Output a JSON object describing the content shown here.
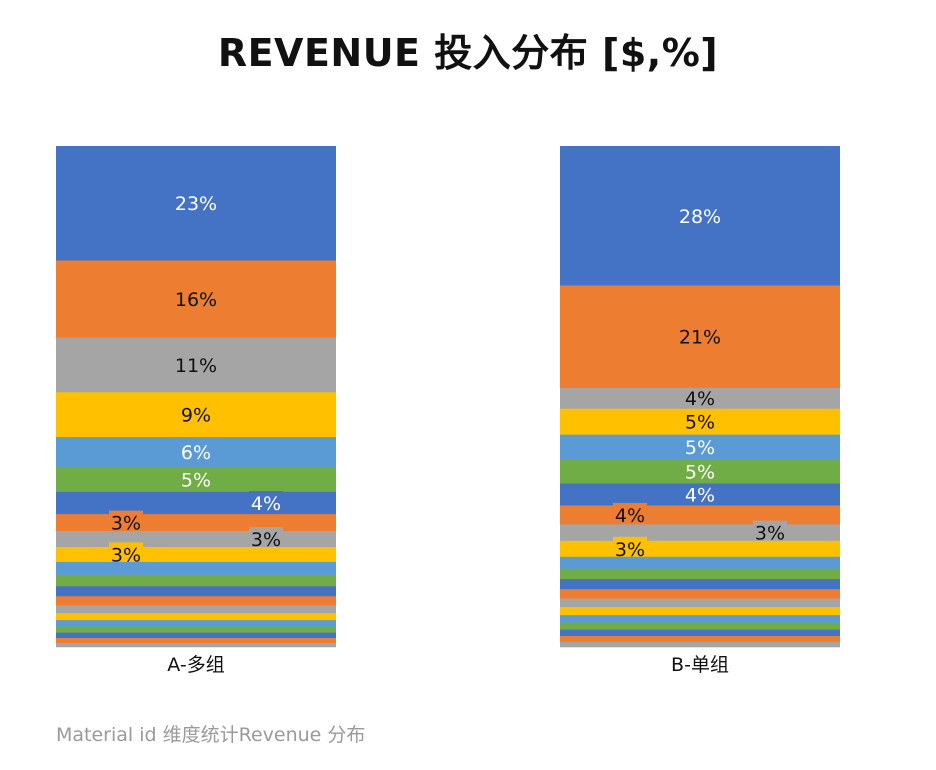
{
  "title": "REVENUE 投入分布 [$,%]",
  "footer": "Material id 维度统计Revenue 分布",
  "chart_data": {
    "type": "bar",
    "stacked": "percent",
    "categories": [
      "A-多组",
      "B-单组"
    ],
    "palette": [
      "#4472C4",
      "#ED7D31",
      "#A5A5A5",
      "#FFC000",
      "#5B9BD5",
      "#70AD47"
    ],
    "segments": [
      [
        {
          "value": 23,
          "label": "23%",
          "label_color": "#ffffff"
        },
        {
          "value": 15.5,
          "label": "16%",
          "label_color": "#111111"
        },
        {
          "value": 11,
          "label": "11%",
          "label_color": "#111111"
        },
        {
          "value": 9,
          "label": "9%",
          "label_color": "#111111"
        },
        {
          "value": 6,
          "label": "6%",
          "label_color": "#ffffff"
        },
        {
          "value": 5,
          "label": "5%",
          "label_color": "#ffffff"
        },
        {
          "value": 4.5,
          "label": "4%",
          "label_color": "#ffffff",
          "label_pos": "right"
        },
        {
          "value": 3.4,
          "label": "3%",
          "label_color": "#111111",
          "label_pos": "left"
        },
        {
          "value": 3.2,
          "label": "3%",
          "label_color": "#111111",
          "label_pos": "right"
        },
        {
          "value": 3,
          "label": "3%",
          "label_color": "#111111",
          "label_pos": "left"
        },
        {
          "value": 2.6
        },
        {
          "value": 2.3
        },
        {
          "value": 2.0
        },
        {
          "value": 1.8
        },
        {
          "value": 1.6
        },
        {
          "value": 1.4
        },
        {
          "value": 1.3
        },
        {
          "value": 1.2
        },
        {
          "value": 1.1
        },
        {
          "value": 1.0
        },
        {
          "value": 0.8
        }
      ],
      [
        {
          "value": 28,
          "label": "28%",
          "label_color": "#ffffff"
        },
        {
          "value": 20.5,
          "label": "21%",
          "label_color": "#111111"
        },
        {
          "value": 4.2,
          "label": "4%",
          "label_color": "#111111"
        },
        {
          "value": 5.2,
          "label": "5%",
          "label_color": "#111111"
        },
        {
          "value": 5,
          "label": "5%",
          "label_color": "#ffffff"
        },
        {
          "value": 4.8,
          "label": "5%",
          "label_color": "#ffffff"
        },
        {
          "value": 4.4,
          "label": "4%",
          "label_color": "#ffffff"
        },
        {
          "value": 3.8,
          "label": "4%",
          "label_color": "#111111",
          "label_pos": "left"
        },
        {
          "value": 3.3,
          "label": "3%",
          "label_color": "#111111",
          "label_pos": "right"
        },
        {
          "value": 3.2,
          "label": "3%",
          "label_color": "#111111",
          "label_pos": "left"
        },
        {
          "value": 2.4
        },
        {
          "value": 2.1
        },
        {
          "value": 2.0
        },
        {
          "value": 1.9
        },
        {
          "value": 1.7
        },
        {
          "value": 1.6
        },
        {
          "value": 1.5
        },
        {
          "value": 1.4
        },
        {
          "value": 1.3
        },
        {
          "value": 1.2
        },
        {
          "value": 1.0
        }
      ]
    ]
  }
}
